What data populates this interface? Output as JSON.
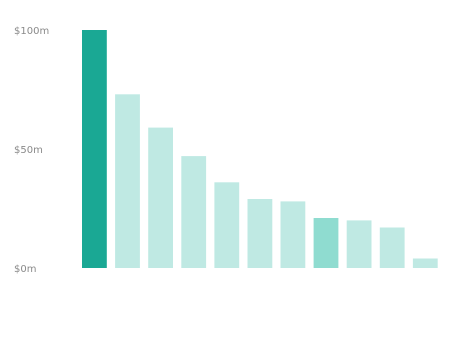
{
  "chart_data": {
    "type": "bar",
    "title": "",
    "xlabel": "",
    "ylabel": "",
    "y_ticks": [
      0,
      50,
      100
    ],
    "y_tick_labels": [
      "$0m",
      "$50m",
      "$100m"
    ],
    "ylim": [
      0,
      100
    ],
    "grid": false,
    "categories": [
      "",
      "",
      "",
      "",
      "",
      "",
      "",
      "",
      "",
      "",
      ""
    ],
    "values": [
      100,
      73,
      59,
      47,
      36,
      29,
      28,
      21,
      20,
      17,
      4
    ],
    "colors": {
      "highlight": "#1aa894",
      "default": "#bfe9e3",
      "mid": "#8fdcd0"
    },
    "highlight_index": 0,
    "mid_index": 7
  }
}
